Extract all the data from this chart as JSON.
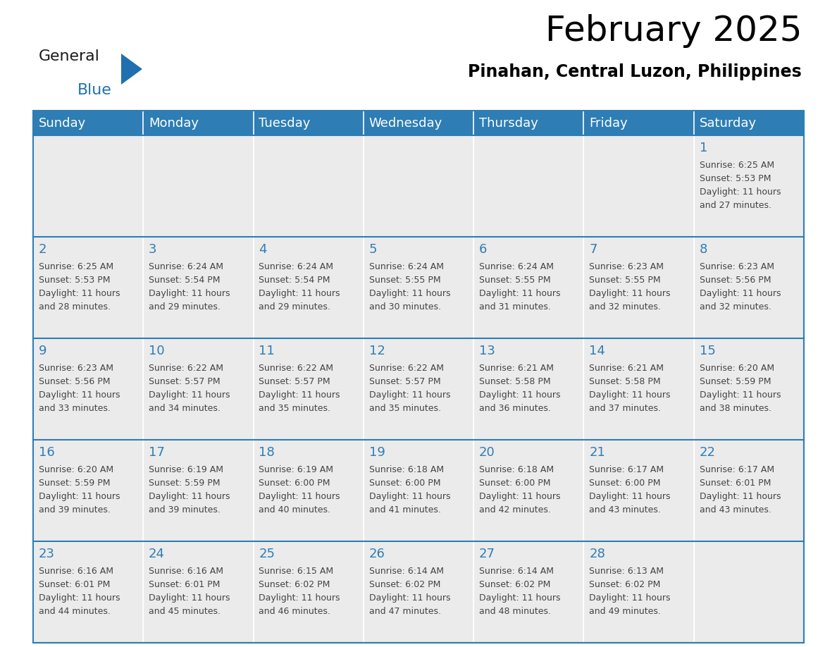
{
  "title": "February 2025",
  "subtitle": "Pinahan, Central Luzon, Philippines",
  "header_bg": "#2e7db5",
  "header_text_color": "#ffffff",
  "cell_bg_light": "#ebebeb",
  "day_number_color": "#2e7db5",
  "info_text_color": "#444444",
  "border_color": "#2e7db5",
  "sep_color": "#ffffff",
  "days_of_week": [
    "Sunday",
    "Monday",
    "Tuesday",
    "Wednesday",
    "Thursday",
    "Friday",
    "Saturday"
  ],
  "weeks": [
    [
      {
        "day": null,
        "info": null
      },
      {
        "day": null,
        "info": null
      },
      {
        "day": null,
        "info": null
      },
      {
        "day": null,
        "info": null
      },
      {
        "day": null,
        "info": null
      },
      {
        "day": null,
        "info": null
      },
      {
        "day": 1,
        "info": "Sunrise: 6:25 AM\nSunset: 5:53 PM\nDaylight: 11 hours\nand 27 minutes."
      }
    ],
    [
      {
        "day": 2,
        "info": "Sunrise: 6:25 AM\nSunset: 5:53 PM\nDaylight: 11 hours\nand 28 minutes."
      },
      {
        "day": 3,
        "info": "Sunrise: 6:24 AM\nSunset: 5:54 PM\nDaylight: 11 hours\nand 29 minutes."
      },
      {
        "day": 4,
        "info": "Sunrise: 6:24 AM\nSunset: 5:54 PM\nDaylight: 11 hours\nand 29 minutes."
      },
      {
        "day": 5,
        "info": "Sunrise: 6:24 AM\nSunset: 5:55 PM\nDaylight: 11 hours\nand 30 minutes."
      },
      {
        "day": 6,
        "info": "Sunrise: 6:24 AM\nSunset: 5:55 PM\nDaylight: 11 hours\nand 31 minutes."
      },
      {
        "day": 7,
        "info": "Sunrise: 6:23 AM\nSunset: 5:55 PM\nDaylight: 11 hours\nand 32 minutes."
      },
      {
        "day": 8,
        "info": "Sunrise: 6:23 AM\nSunset: 5:56 PM\nDaylight: 11 hours\nand 32 minutes."
      }
    ],
    [
      {
        "day": 9,
        "info": "Sunrise: 6:23 AM\nSunset: 5:56 PM\nDaylight: 11 hours\nand 33 minutes."
      },
      {
        "day": 10,
        "info": "Sunrise: 6:22 AM\nSunset: 5:57 PM\nDaylight: 11 hours\nand 34 minutes."
      },
      {
        "day": 11,
        "info": "Sunrise: 6:22 AM\nSunset: 5:57 PM\nDaylight: 11 hours\nand 35 minutes."
      },
      {
        "day": 12,
        "info": "Sunrise: 6:22 AM\nSunset: 5:57 PM\nDaylight: 11 hours\nand 35 minutes."
      },
      {
        "day": 13,
        "info": "Sunrise: 6:21 AM\nSunset: 5:58 PM\nDaylight: 11 hours\nand 36 minutes."
      },
      {
        "day": 14,
        "info": "Sunrise: 6:21 AM\nSunset: 5:58 PM\nDaylight: 11 hours\nand 37 minutes."
      },
      {
        "day": 15,
        "info": "Sunrise: 6:20 AM\nSunset: 5:59 PM\nDaylight: 11 hours\nand 38 minutes."
      }
    ],
    [
      {
        "day": 16,
        "info": "Sunrise: 6:20 AM\nSunset: 5:59 PM\nDaylight: 11 hours\nand 39 minutes."
      },
      {
        "day": 17,
        "info": "Sunrise: 6:19 AM\nSunset: 5:59 PM\nDaylight: 11 hours\nand 39 minutes."
      },
      {
        "day": 18,
        "info": "Sunrise: 6:19 AM\nSunset: 6:00 PM\nDaylight: 11 hours\nand 40 minutes."
      },
      {
        "day": 19,
        "info": "Sunrise: 6:18 AM\nSunset: 6:00 PM\nDaylight: 11 hours\nand 41 minutes."
      },
      {
        "day": 20,
        "info": "Sunrise: 6:18 AM\nSunset: 6:00 PM\nDaylight: 11 hours\nand 42 minutes."
      },
      {
        "day": 21,
        "info": "Sunrise: 6:17 AM\nSunset: 6:00 PM\nDaylight: 11 hours\nand 43 minutes."
      },
      {
        "day": 22,
        "info": "Sunrise: 6:17 AM\nSunset: 6:01 PM\nDaylight: 11 hours\nand 43 minutes."
      }
    ],
    [
      {
        "day": 23,
        "info": "Sunrise: 6:16 AM\nSunset: 6:01 PM\nDaylight: 11 hours\nand 44 minutes."
      },
      {
        "day": 24,
        "info": "Sunrise: 6:16 AM\nSunset: 6:01 PM\nDaylight: 11 hours\nand 45 minutes."
      },
      {
        "day": 25,
        "info": "Sunrise: 6:15 AM\nSunset: 6:02 PM\nDaylight: 11 hours\nand 46 minutes."
      },
      {
        "day": 26,
        "info": "Sunrise: 6:14 AM\nSunset: 6:02 PM\nDaylight: 11 hours\nand 47 minutes."
      },
      {
        "day": 27,
        "info": "Sunrise: 6:14 AM\nSunset: 6:02 PM\nDaylight: 11 hours\nand 48 minutes."
      },
      {
        "day": 28,
        "info": "Sunrise: 6:13 AM\nSunset: 6:02 PM\nDaylight: 11 hours\nand 49 minutes."
      },
      {
        "day": null,
        "info": null
      }
    ]
  ],
  "logo_general_color": "#1a1a1a",
  "logo_blue_color": "#2070b0",
  "title_fontsize": 36,
  "subtitle_fontsize": 17,
  "header_fontsize": 13,
  "day_num_fontsize": 13,
  "info_fontsize": 9
}
